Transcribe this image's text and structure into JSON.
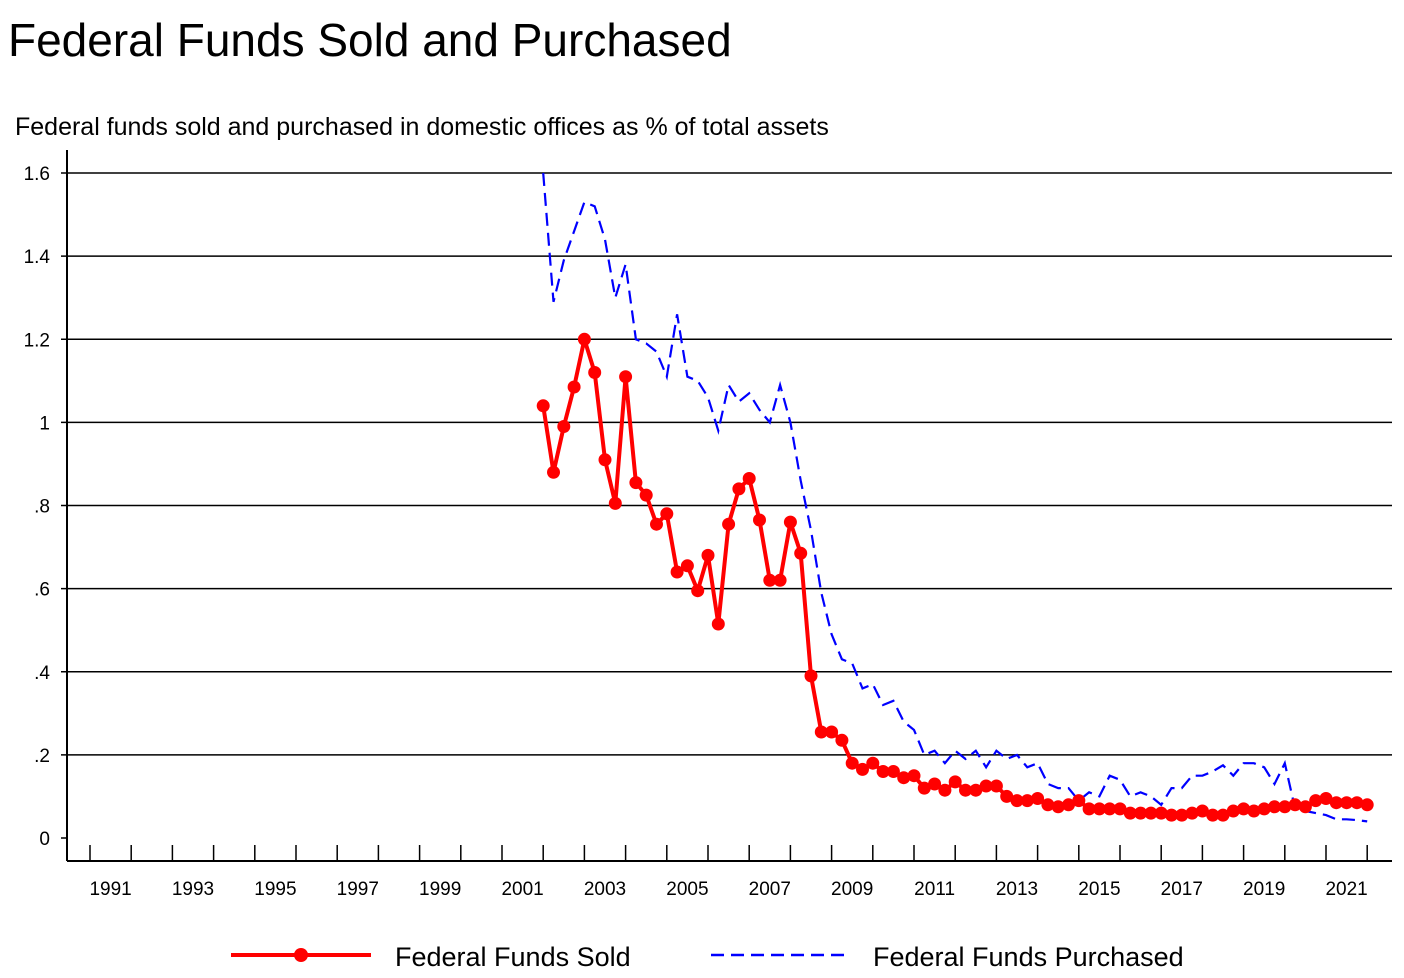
{
  "title": "Federal Funds Sold and Purchased",
  "subtitle": "Federal funds sold and purchased in domestic offices as % of total assets",
  "chart_data": {
    "type": "line",
    "title": "Federal Funds Sold and Purchased",
    "subtitle": "Federal funds sold and purchased in domestic offices as % of total assets",
    "xlabel": "",
    "ylabel": "",
    "xlim": [
      1990,
      2022
    ],
    "ylim": [
      0,
      1.6
    ],
    "grid": "horizontal",
    "legend_position": "bottom",
    "y_ticks": [
      {
        "value": 0,
        "label": "0"
      },
      {
        "value": 0.2,
        "label": ".2"
      },
      {
        "value": 0.4,
        "label": ".4"
      },
      {
        "value": 0.6,
        "label": ".6"
      },
      {
        "value": 0.8,
        "label": ".8"
      },
      {
        "value": 1.0,
        "label": "1"
      },
      {
        "value": 1.2,
        "label": "1.2"
      },
      {
        "value": 1.4,
        "label": "1.4"
      },
      {
        "value": 1.6,
        "label": "1.6"
      }
    ],
    "x_tick_labels": [
      "1991",
      "1993",
      "1995",
      "1997",
      "1999",
      "2001",
      "2003",
      "2005",
      "2007",
      "2009",
      "2011",
      "2013",
      "2015",
      "2017",
      "2019",
      "2021"
    ],
    "x_tick_label_years": [
      1991,
      1993,
      1995,
      1997,
      1999,
      2001,
      2003,
      2005,
      2007,
      2009,
      2011,
      2013,
      2015,
      2017,
      2019,
      2021
    ],
    "series": [
      {
        "name": "Federal Funds Sold",
        "color": "#ff0000",
        "style": "solid-markers",
        "x": [
          2001.5,
          2001.75,
          2002.0,
          2002.25,
          2002.5,
          2002.75,
          2003.0,
          2003.25,
          2003.5,
          2003.75,
          2004.0,
          2004.25,
          2004.5,
          2004.75,
          2005.0,
          2005.25,
          2005.5,
          2005.75,
          2006.0,
          2006.25,
          2006.5,
          2006.75,
          2007.0,
          2007.25,
          2007.5,
          2007.75,
          2008.0,
          2008.25,
          2008.5,
          2008.75,
          2009.0,
          2009.25,
          2009.5,
          2009.75,
          2010.0,
          2010.25,
          2010.5,
          2010.75,
          2011.0,
          2011.25,
          2011.5,
          2011.75,
          2012.0,
          2012.25,
          2012.5,
          2012.75,
          2013.0,
          2013.25,
          2013.5,
          2013.75,
          2014.0,
          2014.25,
          2014.5,
          2014.75,
          2015.0,
          2015.25,
          2015.5,
          2015.75,
          2016.0,
          2016.25,
          2016.5,
          2016.75,
          2017.0,
          2017.25,
          2017.5,
          2017.75,
          2018.0,
          2018.25,
          2018.5,
          2018.75,
          2019.0,
          2019.25,
          2019.5,
          2019.75,
          2020.0,
          2020.25,
          2020.5,
          2020.75,
          2021.0,
          2021.25,
          2021.5
        ],
        "values": [
          1.04,
          0.88,
          0.99,
          1.085,
          1.2,
          1.12,
          0.91,
          0.805,
          1.11,
          0.855,
          0.825,
          0.755,
          0.78,
          0.64,
          0.655,
          0.595,
          0.68,
          0.515,
          0.755,
          0.84,
          0.865,
          0.765,
          0.62,
          0.62,
          0.76,
          0.685,
          0.39,
          0.255,
          0.255,
          0.235,
          0.18,
          0.165,
          0.18,
          0.16,
          0.16,
          0.145,
          0.15,
          0.12,
          0.13,
          0.115,
          0.135,
          0.115,
          0.115,
          0.125,
          0.125,
          0.1,
          0.09,
          0.09,
          0.095,
          0.08,
          0.075,
          0.08,
          0.09,
          0.07,
          0.07,
          0.07,
          0.07,
          0.06,
          0.06,
          0.06,
          0.06,
          0.055,
          0.055,
          0.06,
          0.065,
          0.055,
          0.055,
          0.065,
          0.07,
          0.065,
          0.07,
          0.075,
          0.075,
          0.08,
          0.075,
          0.09,
          0.095,
          0.085,
          0.085,
          0.085,
          0.08
        ]
      },
      {
        "name": "Federal Funds Purchased",
        "color": "#0000ff",
        "style": "dashed",
        "x": [
          2001.5,
          2001.75,
          2002.0,
          2002.25,
          2002.5,
          2002.75,
          2003.0,
          2003.25,
          2003.5,
          2003.75,
          2004.0,
          2004.25,
          2004.5,
          2004.75,
          2005.0,
          2005.25,
          2005.5,
          2005.75,
          2006.0,
          2006.25,
          2006.5,
          2006.75,
          2007.0,
          2007.25,
          2007.5,
          2007.75,
          2008.0,
          2008.25,
          2008.5,
          2008.75,
          2009.0,
          2009.25,
          2009.5,
          2009.75,
          2010.0,
          2010.25,
          2010.5,
          2010.75,
          2011.0,
          2011.25,
          2011.5,
          2011.75,
          2012.0,
          2012.25,
          2012.5,
          2012.75,
          2013.0,
          2013.25,
          2013.5,
          2013.75,
          2014.0,
          2014.25,
          2014.5,
          2014.75,
          2015.0,
          2015.25,
          2015.5,
          2015.75,
          2016.0,
          2016.25,
          2016.5,
          2016.75,
          2017.0,
          2017.25,
          2017.5,
          2017.75,
          2018.0,
          2018.25,
          2018.5,
          2018.75,
          2019.0,
          2019.25,
          2019.5,
          2019.75,
          2020.0,
          2020.25,
          2020.5,
          2020.75,
          2021.0,
          2021.25,
          2021.5
        ],
        "values": [
          1.6,
          1.29,
          1.39,
          1.46,
          1.53,
          1.52,
          1.44,
          1.3,
          1.38,
          1.2,
          1.19,
          1.17,
          1.11,
          1.26,
          1.11,
          1.1,
          1.06,
          0.98,
          1.09,
          1.05,
          1.07,
          1.03,
          1.0,
          1.09,
          1.0,
          0.86,
          0.74,
          0.59,
          0.49,
          0.43,
          0.42,
          0.36,
          0.37,
          0.32,
          0.33,
          0.28,
          0.26,
          0.2,
          0.21,
          0.18,
          0.21,
          0.19,
          0.21,
          0.17,
          0.21,
          0.19,
          0.2,
          0.17,
          0.18,
          0.13,
          0.12,
          0.12,
          0.09,
          0.11,
          0.1,
          0.15,
          0.14,
          0.1,
          0.11,
          0.1,
          0.08,
          0.12,
          0.12,
          0.15,
          0.15,
          0.16,
          0.175,
          0.15,
          0.18,
          0.18,
          0.17,
          0.13,
          0.18,
          0.07,
          0.065,
          0.06,
          0.055,
          0.045,
          0.045,
          0.043,
          0.04
        ]
      }
    ]
  },
  "legend": {
    "items": [
      {
        "label": "Federal Funds Sold",
        "color": "#ff0000"
      },
      {
        "label": "Federal Funds Purchased",
        "color": "#0000ff"
      }
    ]
  }
}
